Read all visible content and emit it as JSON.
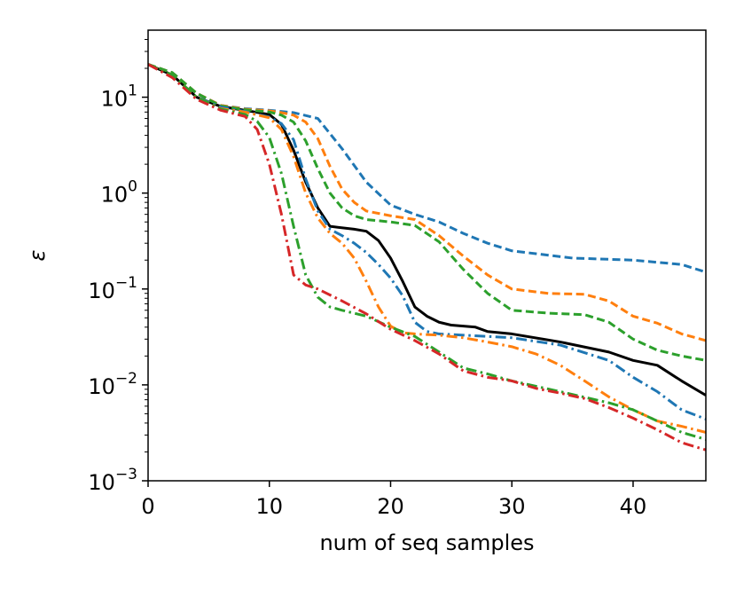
{
  "chart_data": {
    "type": "line",
    "title": "",
    "xlabel": "num of seq samples",
    "ylabel": "ε",
    "xlim": [
      0,
      46
    ],
    "ylim": [
      0.001,
      50
    ],
    "yscale": "log",
    "x_ticks": [
      {
        "value": 0,
        "label": "0"
      },
      {
        "value": 10,
        "label": "10"
      },
      {
        "value": 20,
        "label": "20"
      },
      {
        "value": 30,
        "label": "30"
      },
      {
        "value": 40,
        "label": "40"
      }
    ],
    "y_ticks": [
      {
        "value": 0.001,
        "base": "10",
        "exp": "−3"
      },
      {
        "value": 0.01,
        "base": "10",
        "exp": "−2"
      },
      {
        "value": 0.1,
        "base": "10",
        "exp": "−1"
      },
      {
        "value": 1,
        "base": "10",
        "exp": "0"
      },
      {
        "value": 10,
        "base": "10",
        "exp": "1"
      }
    ],
    "grid": false,
    "series": [
      {
        "name": "black solid",
        "color": "#000000",
        "dash": "solid",
        "x": [
          0,
          2,
          4,
          6,
          8,
          10,
          11,
          12,
          13,
          14,
          15,
          17,
          18,
          19,
          20,
          21,
          22,
          23,
          24,
          25,
          27,
          28,
          30,
          34,
          38,
          40,
          42,
          44,
          46
        ],
        "y": [
          22,
          17,
          10,
          8,
          7.3,
          6.6,
          5.2,
          2.8,
          1.3,
          0.7,
          0.45,
          0.42,
          0.4,
          0.32,
          0.21,
          0.12,
          0.065,
          0.052,
          0.045,
          0.042,
          0.04,
          0.036,
          0.034,
          0.028,
          0.022,
          0.018,
          0.016,
          0.011,
          0.0078
        ]
      },
      {
        "name": "blue dashed",
        "color": "#1f77b4",
        "dash": "dashed",
        "x": [
          0,
          2,
          4,
          6,
          8,
          10,
          12,
          14,
          16,
          18,
          20,
          22,
          24,
          26,
          28,
          30,
          35,
          40,
          44,
          46
        ],
        "y": [
          22,
          18,
          11,
          8.2,
          7.6,
          7.3,
          6.9,
          6.0,
          2.9,
          1.3,
          0.75,
          0.6,
          0.5,
          0.38,
          0.3,
          0.25,
          0.21,
          0.2,
          0.18,
          0.15
        ]
      },
      {
        "name": "orange dashed",
        "color": "#ff7f0e",
        "dash": "dashed",
        "x": [
          0,
          2,
          4,
          6,
          8,
          10,
          11,
          12,
          13,
          14,
          15,
          16,
          17,
          18,
          20,
          22,
          24,
          26,
          28,
          30,
          33,
          36,
          38,
          40,
          42,
          44,
          46
        ],
        "y": [
          22,
          18,
          11,
          8.2,
          7.5,
          7.2,
          6.9,
          6.5,
          5.5,
          3.7,
          1.9,
          1.1,
          0.8,
          0.65,
          0.58,
          0.53,
          0.36,
          0.22,
          0.14,
          0.1,
          0.09,
          0.088,
          0.075,
          0.052,
          0.044,
          0.034,
          0.029
        ]
      },
      {
        "name": "green dashed",
        "color": "#2ca02c",
        "dash": "dashed",
        "x": [
          0,
          2,
          4,
          6,
          8,
          10,
          11,
          12,
          13,
          14,
          15,
          16,
          17,
          18,
          20,
          22,
          24,
          26,
          28,
          30,
          33,
          36,
          38,
          40,
          42,
          44,
          46
        ],
        "y": [
          22,
          18,
          11,
          8.1,
          7.4,
          7.0,
          6.5,
          5.5,
          3.5,
          1.8,
          1.0,
          0.7,
          0.58,
          0.53,
          0.5,
          0.46,
          0.31,
          0.16,
          0.09,
          0.06,
          0.056,
          0.054,
          0.045,
          0.03,
          0.023,
          0.02,
          0.018
        ]
      },
      {
        "name": "blue dash-dot",
        "color": "#1f77b4",
        "dash": "dashdot",
        "x": [
          0,
          2,
          4,
          6,
          8,
          10,
          11,
          12,
          13,
          14,
          15,
          16,
          17,
          18,
          19,
          20,
          21,
          22,
          23,
          24,
          26,
          28,
          30,
          34,
          38,
          40,
          42,
          44,
          46
        ],
        "y": [
          22,
          17,
          10,
          7.9,
          7.1,
          6.2,
          5.3,
          3.6,
          1.4,
          0.65,
          0.42,
          0.36,
          0.3,
          0.24,
          0.18,
          0.13,
          0.085,
          0.045,
          0.036,
          0.034,
          0.033,
          0.032,
          0.031,
          0.026,
          0.018,
          0.012,
          0.0085,
          0.0055,
          0.0044
        ]
      },
      {
        "name": "orange dash-dot",
        "color": "#ff7f0e",
        "dash": "dashdot",
        "x": [
          0,
          2,
          4,
          6,
          8,
          10,
          11,
          12,
          13,
          14,
          15,
          16,
          17,
          18,
          19,
          20,
          21,
          22,
          24,
          26,
          28,
          30,
          32,
          34,
          36,
          38,
          40,
          42,
          44,
          46
        ],
        "y": [
          22,
          17,
          10,
          7.6,
          7.0,
          6.1,
          4.6,
          2.4,
          1.0,
          0.55,
          0.38,
          0.3,
          0.21,
          0.12,
          0.065,
          0.041,
          0.035,
          0.034,
          0.033,
          0.031,
          0.028,
          0.025,
          0.021,
          0.016,
          0.011,
          0.0075,
          0.0055,
          0.0042,
          0.0037,
          0.0032
        ]
      },
      {
        "name": "green dash-dot",
        "color": "#2ca02c",
        "dash": "dashdot",
        "x": [
          0,
          2,
          4,
          6,
          8,
          9,
          10,
          11,
          12,
          13,
          14,
          15,
          16,
          18,
          20,
          22,
          24,
          26,
          28,
          30,
          34,
          38,
          40,
          42,
          44,
          46
        ],
        "y": [
          22,
          17,
          10,
          7.5,
          6.6,
          5.6,
          3.8,
          1.6,
          0.45,
          0.14,
          0.082,
          0.065,
          0.06,
          0.052,
          0.04,
          0.032,
          0.022,
          0.015,
          0.013,
          0.011,
          0.0085,
          0.0065,
          0.0055,
          0.0042,
          0.0032,
          0.0027
        ]
      },
      {
        "name": "red dash-dot",
        "color": "#d62728",
        "dash": "dashdot",
        "x": [
          0,
          2,
          4,
          6,
          8,
          9,
          10,
          11,
          12,
          13,
          14,
          16,
          18,
          20,
          22,
          24,
          26,
          28,
          30,
          32,
          34,
          36,
          38,
          40,
          42,
          44,
          46
        ],
        "y": [
          22,
          16,
          9.5,
          7.3,
          6.3,
          4.6,
          2.0,
          0.6,
          0.14,
          0.11,
          0.1,
          0.075,
          0.055,
          0.038,
          0.029,
          0.021,
          0.014,
          0.012,
          0.011,
          0.0092,
          0.0082,
          0.0072,
          0.0058,
          0.0045,
          0.0034,
          0.0025,
          0.0021
        ]
      }
    ]
  }
}
